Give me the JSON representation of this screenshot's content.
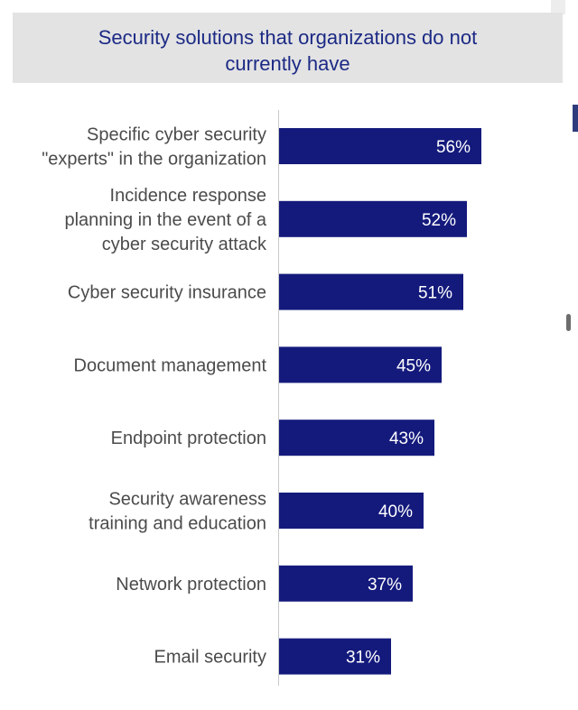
{
  "chart_data": {
    "type": "bar",
    "orientation": "horizontal",
    "title": "Security solutions that organizations do not\ncurrently have",
    "categories": [
      "Specific cyber security\n\"experts\" in the organization",
      "Incidence response\nplanning in the event of a\ncyber security attack",
      "Cyber security insurance",
      "Document management",
      "Endpoint protection",
      "Security awareness\ntraining and education",
      "Network protection",
      "Email security"
    ],
    "values": [
      56,
      52,
      51,
      45,
      43,
      40,
      37,
      31
    ],
    "value_labels": [
      "56%",
      "52%",
      "51%",
      "45%",
      "43%",
      "40%",
      "37%",
      "31%"
    ],
    "xlim": [
      0,
      100
    ],
    "grid": false,
    "legend": "none",
    "colors": {
      "bar": "#141a7c",
      "title": "#1c2a84",
      "title_band": "#e3e3e4",
      "label": "#4b4b4b",
      "axis": "#c8c8c8"
    }
  }
}
